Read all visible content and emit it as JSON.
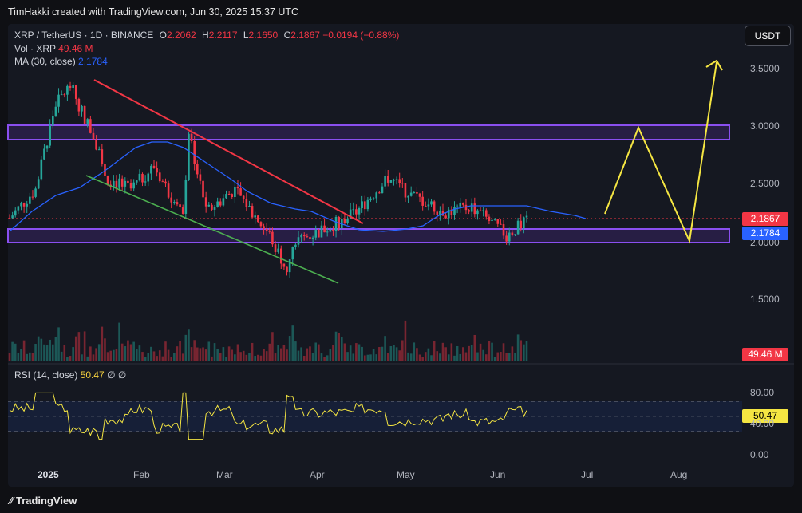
{
  "header": {
    "credit": "TimHakki created with TradingView.com, Jun 30, 2025 15:37 UTC"
  },
  "legend": {
    "symbol": "XRP / TetherUS · 1D · BINANCE",
    "o_label": "O",
    "o": "2.2062",
    "h_label": "H",
    "h": "2.2117",
    "l_label": "L",
    "l": "2.1650",
    "c_label": "C",
    "c": "2.1867",
    "change": "−0.0194 (−0.88%)",
    "vol_label": "Vol · XRP",
    "vol_value": "49.46 M",
    "ma_label": "MA (30, close)",
    "ma_value": "2.1784"
  },
  "currency_button": "USDT",
  "price_axis": [
    "3.5000",
    "3.0000",
    "2.5000",
    "2.0000",
    "1.5000"
  ],
  "price_tags": {
    "close": "2.1867",
    "ma": "2.1784",
    "volume": "49.46 M",
    "rsi": "50.47"
  },
  "rsi": {
    "label": "RSI (14, close)",
    "value": "50.47",
    "icons": "∅ ∅",
    "axis": [
      "80.00",
      "40.00",
      "0.00"
    ]
  },
  "time_axis": [
    "2025",
    "Feb",
    "Mar",
    "Apr",
    "May",
    "Jun",
    "Jul",
    "Aug"
  ],
  "footer": {
    "brand": "TradingView"
  },
  "colors": {
    "bull": "#26a69a",
    "bear": "#f23645",
    "ma": "#2962ff",
    "zone": "#7b3fe4",
    "projection": "#f5e642",
    "upper_trend": "#f23645",
    "lower_trend": "#4caf50",
    "rsi": "#f5e642"
  },
  "chart_data": {
    "type": "line",
    "title": "XRP / TetherUS · 1D · BINANCE",
    "ylabel": "",
    "ylim": [
      1.3,
      3.65
    ],
    "series": [
      {
        "name": "XRP / TetherUS",
        "x": [
          "2025-01-01",
          "2025-01-10",
          "2025-01-17",
          "2025-01-22",
          "2025-02-01",
          "2025-02-03",
          "2025-02-12",
          "2025-02-20",
          "2025-03-02",
          "2025-03-04",
          "2025-03-10",
          "2025-03-20",
          "2025-04-01",
          "2025-04-07",
          "2025-04-10",
          "2025-04-20",
          "2025-05-01",
          "2025-05-12",
          "2025-05-20",
          "2025-06-01",
          "2025-06-10",
          "2025-06-22",
          "2025-06-30"
        ],
        "values": [
          2.2,
          2.45,
          3.2,
          3.35,
          2.8,
          2.55,
          2.45,
          2.65,
          2.2,
          2.95,
          2.25,
          2.45,
          2.05,
          1.75,
          2.0,
          2.1,
          2.25,
          2.55,
          2.4,
          2.25,
          2.3,
          2.05,
          2.19
        ]
      },
      {
        "name": "MA (30, close)",
        "x": [
          "2025-01-01",
          "2025-01-20",
          "2025-02-01",
          "2025-02-15",
          "2025-03-01",
          "2025-03-15",
          "2025-04-01",
          "2025-04-15",
          "2025-05-01",
          "2025-05-15",
          "2025-06-01",
          "2025-06-15",
          "2025-06-30"
        ],
        "values": [
          2.25,
          2.55,
          2.85,
          2.8,
          2.5,
          2.35,
          2.25,
          2.12,
          2.15,
          2.3,
          2.3,
          2.25,
          2.18
        ]
      }
    ],
    "zones": [
      {
        "from": 2.95,
        "to": 3.0
      },
      {
        "from": 2.0,
        "to": 2.1
      }
    ],
    "projection": {
      "x": [
        "2025-07-15",
        "2025-07-30",
        "2025-08-15",
        "2025-08-25"
      ],
      "values": [
        2.2,
        2.95,
        2.02,
        3.55
      ]
    },
    "rsi_ylim": [
      0,
      100
    ],
    "rsi_bands": [
      30,
      70
    ]
  }
}
